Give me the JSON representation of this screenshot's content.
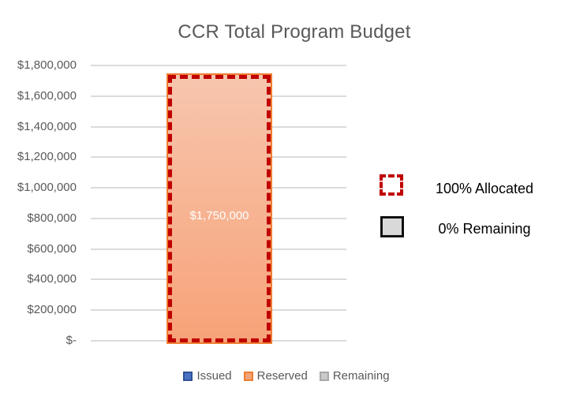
{
  "chart_data": {
    "type": "bar",
    "title": "CCR Total Program Budget",
    "categories": [
      ""
    ],
    "series": [
      {
        "name": "Issued",
        "values": [
          0
        ],
        "fill": "#4A72C4",
        "border": "#2E5395"
      },
      {
        "name": "Reserved",
        "values": [
          1750000
        ],
        "fill": "#F2A478",
        "border": "#ED7D31"
      },
      {
        "name": "Remaining",
        "values": [
          0
        ],
        "fill": "#C9C9C9",
        "border": "#A8A8A8"
      }
    ],
    "bar_data_label": "$1,750,000",
    "xlabel": "",
    "ylabel": "",
    "ylim": [
      0,
      1800000
    ],
    "y_tick_interval": 200000,
    "y_ticks": [
      "$1,800,000",
      "$1,600,000",
      "$1,400,000",
      "$1,200,000",
      "$1,000,000",
      "$800,000",
      "$600,000",
      "$400,000",
      "$200,000",
      "$-"
    ],
    "grid": true,
    "legend_position": "bottom",
    "bar_fill_top": "#F7C6AE",
    "bar_fill_bottom": "#F7A278",
    "bar_border_color": "#ED7D31",
    "bar_dash_border_color": "#C00000",
    "title_color": "#595959",
    "axis_text_color": "#595959",
    "gridline_color": "#DBDBDB"
  },
  "callout_legend": {
    "allocated_label": "100% Allocated",
    "remaining_label": "0% Remaining",
    "allocated_swatch_border": "#C00000",
    "remaining_swatch_fill": "#D9D9D9",
    "remaining_swatch_border": "#111111",
    "text_color": "#000000"
  }
}
